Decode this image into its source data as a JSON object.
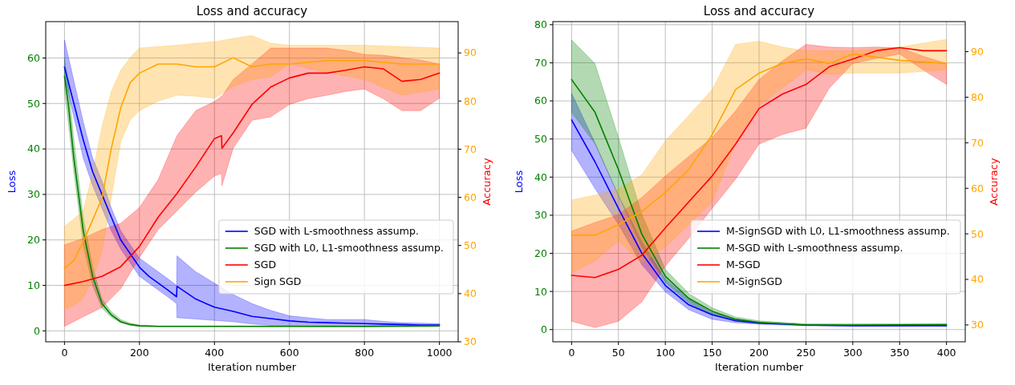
{
  "chart_data": [
    {
      "type": "line",
      "title": "Loss and accuracy",
      "xlabel": "Iteration number",
      "ylabel": "Loss",
      "y2label": "Accuracy",
      "xlim": [
        -50,
        1050
      ],
      "xticks": [
        0,
        200,
        400,
        600,
        800,
        1000
      ],
      "ylim": [
        -2.4,
        68
      ],
      "yticks": [
        0,
        10,
        20,
        30,
        40,
        50,
        60
      ],
      "y2lim": [
        30,
        96.5
      ],
      "y2ticks": [
        30,
        40,
        50,
        60,
        70,
        80,
        90
      ],
      "grid": true,
      "legend": "bottom right",
      "series": [
        {
          "name": "SGD with L-smoothness assump.",
          "color": "#0000ff",
          "x": [
            0,
            25,
            50,
            75,
            100,
            125,
            150,
            175,
            200,
            225,
            250,
            275,
            299,
            300,
            350,
            400,
            450,
            500,
            550,
            600,
            650,
            700,
            750,
            800,
            850,
            900,
            950,
            1000
          ],
          "values": [
            58,
            50,
            42,
            35,
            30,
            25,
            20,
            17,
            14,
            12,
            10.5,
            9,
            7.5,
            9.8,
            7,
            5.2,
            4.3,
            3.2,
            2.7,
            2.2,
            1.9,
            1.8,
            1.7,
            1.6,
            1.5,
            1.4,
            1.3,
            1.3
          ],
          "lower": [
            56,
            47,
            38,
            32,
            27,
            22,
            18,
            15,
            12,
            10.5,
            9,
            7.5,
            6,
            2.9,
            2.6,
            2.3,
            2,
            1.5,
            1.2,
            1.1,
            1,
            1,
            0.95,
            0.9,
            0.95,
            1,
            1,
            1
          ],
          "upper": [
            64,
            55,
            46,
            38,
            33,
            27,
            22,
            19,
            16,
            14.5,
            13,
            11.5,
            10,
            16.5,
            13,
            10.5,
            8,
            6,
            4.5,
            3.3,
            2.9,
            2.5,
            2.5,
            2.5,
            2.1,
            1.8,
            1.7,
            1.6
          ]
        },
        {
          "name": "SGD with L0, L1-smoothness assump.",
          "color": "#008000",
          "x": [
            0,
            10,
            25,
            50,
            75,
            100,
            125,
            150,
            175,
            200,
            250,
            400,
            600,
            800,
            1000
          ],
          "values": [
            56,
            50,
            38,
            22,
            12,
            6,
            3.5,
            2,
            1.4,
            1.1,
            1,
            1,
            1,
            1,
            1.1
          ],
          "lower": [
            53,
            46,
            35,
            19,
            10,
            5,
            3,
            1.8,
            1.2,
            1,
            0.95,
            0.95,
            0.95,
            0.95,
            1
          ],
          "upper": [
            60,
            54,
            42,
            25,
            14,
            7,
            4.2,
            2.5,
            1.7,
            1.3,
            1.1,
            1.1,
            1.1,
            1.1,
            1.2
          ]
        },
        {
          "name": "SGD",
          "color": "#ff0000",
          "axis": "y2",
          "x": [
            0,
            50,
            100,
            150,
            200,
            250,
            300,
            350,
            400,
            419,
            420,
            450,
            500,
            550,
            600,
            650,
            700,
            750,
            800,
            850,
            900,
            950,
            1000
          ],
          "values": [
            41.7,
            42.5,
            43.6,
            45.6,
            49.8,
            55.9,
            60.8,
            66.3,
            72.2,
            72.8,
            70.2,
            73.4,
            79.3,
            82.9,
            84.8,
            85.8,
            85.8,
            86.4,
            87.1,
            86.7,
            84.1,
            84.5,
            85.8
          ],
          "lower": [
            33.2,
            35.2,
            37.1,
            41,
            47.5,
            53.3,
            57.2,
            61.1,
            64.4,
            65,
            62.4,
            70.2,
            76,
            76.7,
            79.3,
            80.5,
            81.2,
            82,
            82.5,
            80.5,
            78,
            78,
            80.6
          ],
          "upper": [
            50.1,
            51.5,
            53.3,
            54.6,
            57.9,
            63.7,
            72.8,
            78,
            79.9,
            81,
            81,
            84.5,
            87.7,
            91,
            91,
            91,
            91,
            90.5,
            89.7,
            89.5,
            89,
            88.5,
            87.7
          ]
        },
        {
          "name": "Sign SGD",
          "color": "#ffa500",
          "axis": "y2",
          "x": [
            0,
            25,
            50,
            75,
            100,
            125,
            150,
            175,
            200,
            250,
            300,
            350,
            400,
            450,
            500,
            550,
            600,
            700,
            800,
            900,
            1000
          ],
          "values": [
            45.2,
            46.9,
            50.8,
            55.3,
            59.8,
            70.2,
            78.6,
            83.8,
            85.8,
            87.7,
            87.7,
            87.1,
            87.1,
            89,
            87.1,
            87.7,
            87.7,
            88.4,
            88.4,
            87.7,
            87.7
          ],
          "lower": [
            36.8,
            37.5,
            39.1,
            43,
            48.8,
            60,
            71.5,
            76,
            78,
            80,
            81.2,
            81,
            80.6,
            83,
            84.5,
            85,
            87.7,
            86,
            84.5,
            81.2,
            82.5
          ],
          "upper": [
            54,
            55.5,
            57.2,
            65,
            74.7,
            82,
            86.4,
            89,
            91,
            91.3,
            91.6,
            92,
            92.3,
            93,
            93.6,
            92,
            91.6,
            91.6,
            91.6,
            91.3,
            91
          ]
        }
      ]
    },
    {
      "type": "line",
      "title": "Loss and accuracy",
      "xlabel": "Iteration number",
      "ylabel": "Loss",
      "y2label": "Accuracy",
      "xlim": [
        -20,
        420
      ],
      "xticks": [
        0,
        50,
        100,
        150,
        200,
        250,
        300,
        350,
        400
      ],
      "ylim": [
        -3.2,
        80.8
      ],
      "yticks": [
        0,
        10,
        20,
        30,
        40,
        50,
        60,
        70,
        80
      ],
      "y2lim": [
        26.3,
        96.6
      ],
      "y2ticks": [
        30,
        40,
        50,
        60,
        70,
        80,
        90
      ],
      "grid": true,
      "legend": "bottom right",
      "series": [
        {
          "name": "M-SignSGD with L0, L1-smoothness assump.",
          "color": "#0000ff",
          "x": [
            0,
            25,
            50,
            75,
            100,
            125,
            150,
            175,
            200,
            250,
            300,
            400
          ],
          "values": [
            55,
            44,
            31.8,
            20,
            11.6,
            6.5,
            3.9,
            2.3,
            1.7,
            1.2,
            1,
            1
          ],
          "lower": [
            47,
            37,
            27.6,
            17,
            9.9,
            5.2,
            2.7,
            1.8,
            1.4,
            1,
            0.9,
            0.9
          ],
          "upper": [
            62,
            49,
            35.2,
            23,
            13.3,
            8,
            4.4,
            2.8,
            1.9,
            1.2,
            1.1,
            1.1
          ]
        },
        {
          "name": "M-SGD with L-smoothness assump.",
          "color": "#008000",
          "x": [
            0,
            25,
            50,
            75,
            100,
            125,
            150,
            175,
            200,
            250,
            300,
            400
          ],
          "values": [
            65.6,
            57,
            42,
            25,
            14,
            8.2,
            4.8,
            2.7,
            1.9,
            1.2,
            1.2,
            1.3
          ],
          "lower": [
            57,
            48.7,
            35.2,
            21.7,
            12.4,
            7,
            4,
            2.3,
            1.7,
            1,
            1,
            1.1
          ],
          "upper": [
            76,
            69.8,
            50.4,
            30.2,
            15.8,
            9.5,
            5.7,
            3.3,
            2.3,
            1.5,
            1.5,
            1.5
          ]
        },
        {
          "name": "M-SGD",
          "color": "#ff0000",
          "axis": "y2",
          "x": [
            0,
            25,
            50,
            75,
            100,
            125,
            150,
            175,
            200,
            225,
            250,
            275,
            300,
            325,
            350,
            375,
            400
          ],
          "values": [
            40.9,
            40.4,
            42.2,
            45.3,
            51.3,
            57,
            62.7,
            69.7,
            77.5,
            80.7,
            82.8,
            86.7,
            88.4,
            90.2,
            90.9,
            90.2,
            90.2
          ],
          "lower": [
            30.8,
            29.4,
            30.8,
            35.1,
            42.9,
            49,
            55.6,
            62,
            69.7,
            71.8,
            73.2,
            82,
            87.4,
            88.5,
            89.5,
            86,
            82.8
          ],
          "upper": [
            50.6,
            52.5,
            54.2,
            58,
            62.7,
            67,
            71.1,
            77,
            83.9,
            88,
            91.6,
            91,
            90.9,
            91,
            90.9,
            89,
            87.4
          ]
        },
        {
          "name": "M-SignSGD",
          "color": "#ffa500",
          "axis": "y2",
          "x": [
            0,
            25,
            50,
            75,
            100,
            125,
            150,
            175,
            200,
            225,
            250,
            275,
            300,
            350,
            400
          ],
          "values": [
            49.7,
            49.7,
            52,
            54.9,
            59.1,
            64.1,
            71.8,
            81.7,
            85.3,
            87.4,
            88.4,
            87.4,
            89.5,
            88.1,
            87.4
          ],
          "lower": [
            41.4,
            44,
            48.5,
            43.6,
            47.1,
            52,
            57,
            70,
            78.2,
            82,
            86,
            85,
            85.3,
            85.3,
            86
          ],
          "upper": [
            57.4,
            58.5,
            59.8,
            63,
            70.4,
            76,
            81.7,
            91.6,
            92.3,
            91,
            90.2,
            90.2,
            90.2,
            91,
            92.7
          ]
        }
      ]
    }
  ]
}
